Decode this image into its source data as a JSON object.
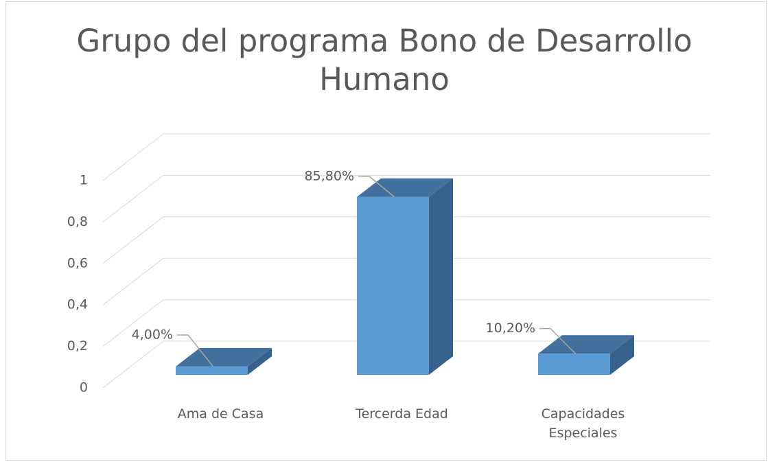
{
  "chart_data": {
    "type": "bar3d",
    "title": "Grupo del programa Bono de Desarrollo Humano",
    "categories": [
      "Ama de Casa",
      "Tercerda Edad",
      "Capacidades Especiales"
    ],
    "values": [
      0.04,
      0.858,
      0.102
    ],
    "value_labels": [
      "4,00%",
      "85,80%",
      "10,20%"
    ],
    "color": "#5b9bd5",
    "ylim": [
      0,
      1
    ],
    "yticks": [
      0,
      {
        "value": 0.2,
        "label": "0,2"
      },
      {
        "value": 0.4,
        "label": "0,4"
      },
      {
        "value": 0.6,
        "label": "0,6"
      },
      {
        "value": 0.8,
        "label": "0,8"
      },
      1
    ],
    "grid": true
  }
}
